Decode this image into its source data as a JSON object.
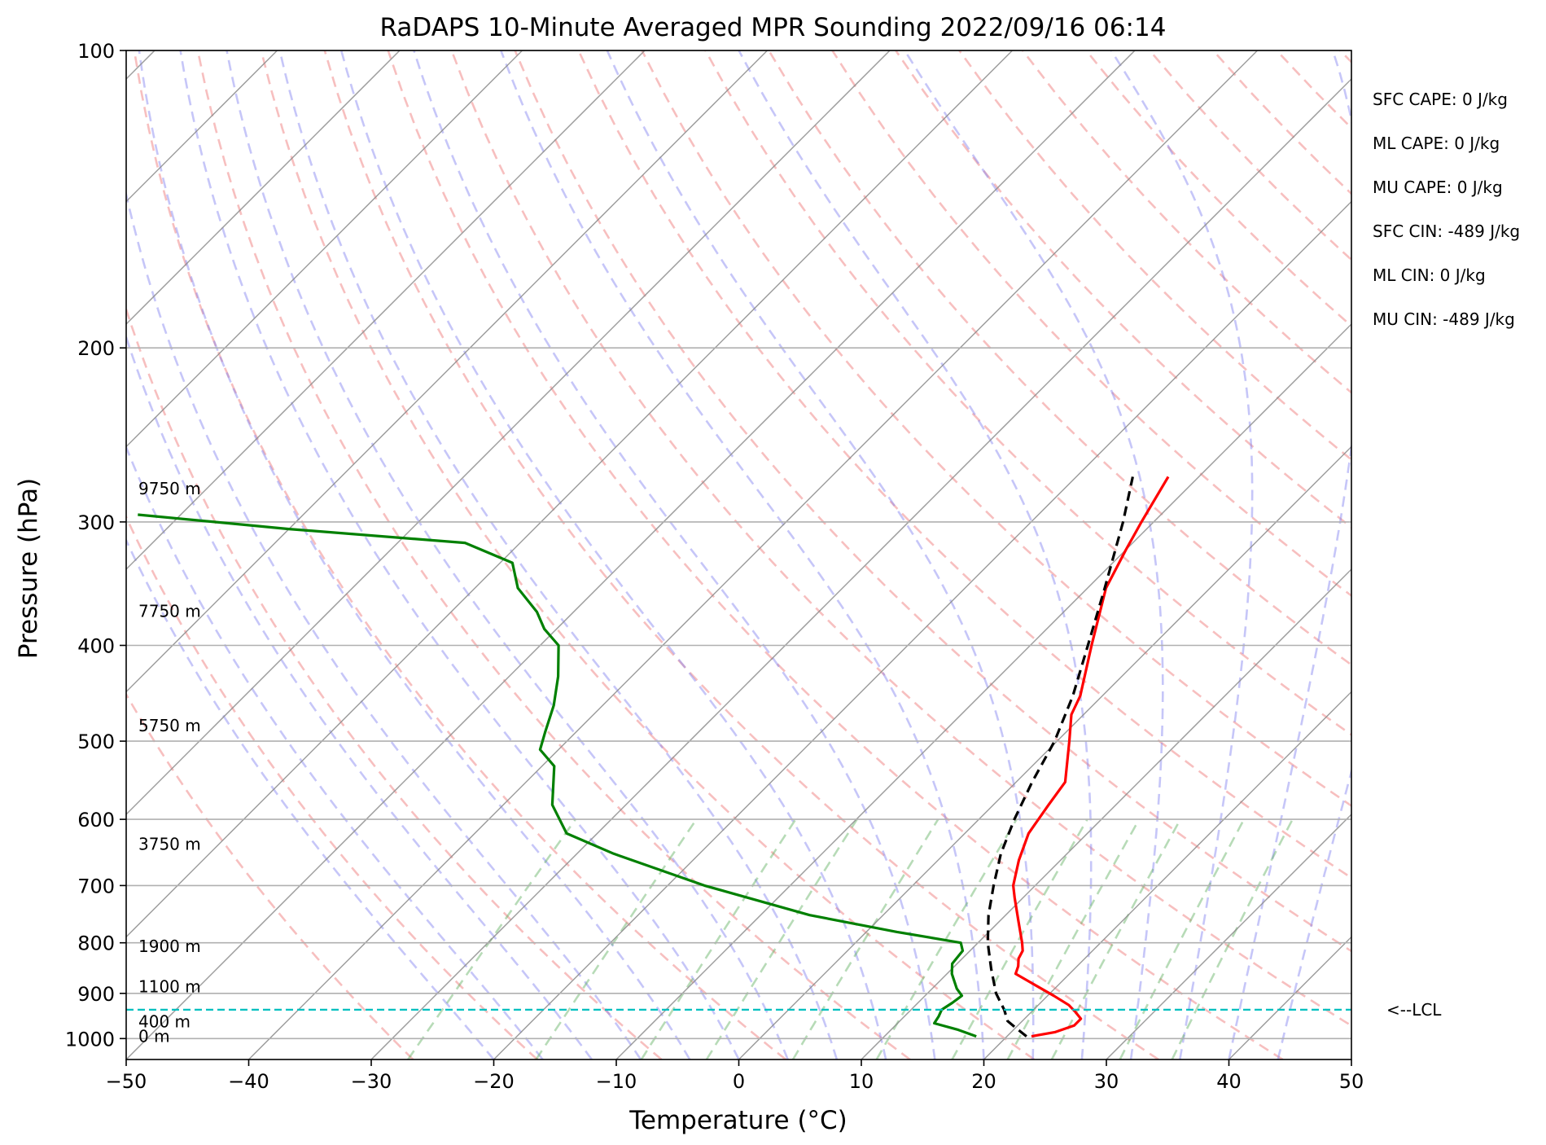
{
  "chart_data": {
    "type": "line",
    "title": "RaDAPS 10-Minute Averaged MPR Sounding 2022/09/16 06:14",
    "xlabel": "Temperature (°C)",
    "ylabel": "Pressure (hPa)",
    "xlim": [
      -50,
      50
    ],
    "ylim": [
      1050,
      100
    ],
    "yscale": "log",
    "skew": true,
    "grid": true,
    "x_ticks": [
      -50,
      -40,
      -30,
      -20,
      -10,
      0,
      10,
      20,
      30,
      40,
      50
    ],
    "x_tick_labels": [
      "−50",
      "−40",
      "−30",
      "−20",
      "−10",
      "0",
      "10",
      "20",
      "30",
      "40",
      "50"
    ],
    "y_ticks": [
      100,
      200,
      300,
      400,
      500,
      600,
      700,
      800,
      900,
      1000
    ],
    "y_tick_labels": [
      "100",
      "200",
      "300",
      "400",
      "500",
      "600",
      "700",
      "800",
      "900",
      "1000"
    ],
    "background_lines": {
      "dry_adiabats": {
        "color": "#f08080",
        "style": "dashed"
      },
      "moist_adiabats": {
        "color": "#8080f0",
        "style": "dashed"
      },
      "mixing_ratio_lines": {
        "color": "#60b060",
        "style": "dashed"
      },
      "isotherms": {
        "color": "#8c8c8c",
        "style": "solid"
      }
    },
    "series": [
      {
        "role": "temperature",
        "color": "#ff0000",
        "points": [
          [
            995,
            22.0
          ],
          [
            985,
            23.6
          ],
          [
            970,
            24.6
          ],
          [
            955,
            24.6
          ],
          [
            940,
            23.6
          ],
          [
            925,
            22.5
          ],
          [
            905,
            20.5
          ],
          [
            880,
            17.8
          ],
          [
            860,
            15.6
          ],
          [
            845,
            15.2
          ],
          [
            830,
            14.6
          ],
          [
            815,
            14.3
          ],
          [
            800,
            13.6
          ],
          [
            760,
            11.5
          ],
          [
            720,
            9.3
          ],
          [
            700,
            8.2
          ],
          [
            660,
            6.6
          ],
          [
            620,
            5.2
          ],
          [
            580,
            4.5
          ],
          [
            550,
            4.0
          ],
          [
            500,
            1.0
          ],
          [
            470,
            -1.0
          ],
          [
            450,
            -1.8
          ],
          [
            400,
            -5.0
          ],
          [
            350,
            -8.5
          ],
          [
            320,
            -10.0
          ],
          [
            300,
            -11.0
          ],
          [
            270,
            -12.5
          ]
        ]
      },
      {
        "role": "dewpoint",
        "color": "#008000",
        "points": [
          [
            995,
            17.5
          ],
          [
            980,
            15.5
          ],
          [
            965,
            13.0
          ],
          [
            950,
            12.8
          ],
          [
            935,
            12.5
          ],
          [
            920,
            12.8
          ],
          [
            905,
            13.0
          ],
          [
            890,
            12.0
          ],
          [
            860,
            10.4
          ],
          [
            840,
            9.6
          ],
          [
            815,
            9.4
          ],
          [
            800,
            8.6
          ],
          [
            780,
            2.5
          ],
          [
            750,
            -6.0
          ],
          [
            700,
            -17.0
          ],
          [
            650,
            -27.0
          ],
          [
            620,
            -32.5
          ],
          [
            580,
            -36.0
          ],
          [
            530,
            -39.0
          ],
          [
            510,
            -41.5
          ],
          [
            490,
            -42.5
          ],
          [
            460,
            -44.0
          ],
          [
            430,
            -46.0
          ],
          [
            400,
            -48.5
          ],
          [
            385,
            -51.0
          ],
          [
            370,
            -53.0
          ],
          [
            350,
            -56.5
          ],
          [
            330,
            -59.0
          ],
          [
            315,
            -64.5
          ],
          [
            305,
            -80.0
          ],
          [
            295,
            -93.5
          ]
        ]
      },
      {
        "role": "parcel",
        "color": "#000000",
        "style": "dashed",
        "points": [
          [
            995,
            21.6
          ],
          [
            975,
            20.0
          ],
          [
            960,
            18.8
          ],
          [
            935,
            17.6
          ],
          [
            900,
            15.6
          ],
          [
            850,
            13.2
          ],
          [
            800,
            10.8
          ],
          [
            750,
            8.6
          ],
          [
            700,
            6.6
          ],
          [
            650,
            4.6
          ],
          [
            600,
            2.9
          ],
          [
            550,
            1.3
          ],
          [
            500,
            -0.2
          ],
          [
            450,
            -2.4
          ],
          [
            400,
            -5.3
          ],
          [
            350,
            -8.6
          ],
          [
            300,
            -12.5
          ],
          [
            270,
            -15.4
          ]
        ]
      }
    ],
    "lcl": {
      "pressure": 935,
      "color": "#00bfbf",
      "label": "<--LCL"
    },
    "height_labels": [
      {
        "pressure": 997,
        "label": "0 m"
      },
      {
        "pressure": 963,
        "label": "400 m"
      },
      {
        "pressure": 888,
        "label": "1100 m"
      },
      {
        "pressure": 808,
        "label": "1900 m"
      },
      {
        "pressure": 637,
        "label": "3750 m"
      },
      {
        "pressure": 483,
        "label": "5750 m"
      },
      {
        "pressure": 370,
        "label": "7750 m"
      },
      {
        "pressure": 278,
        "label": "9750 m"
      }
    ],
    "annotations": [
      "SFC CAPE: 0 J/kg",
      "ML CAPE: 0 J/kg",
      "MU CAPE: 0 J/kg",
      "SFC CIN: -489 J/kg",
      "ML CIN: 0 J/kg",
      "MU CIN: -489 J/kg"
    ]
  }
}
